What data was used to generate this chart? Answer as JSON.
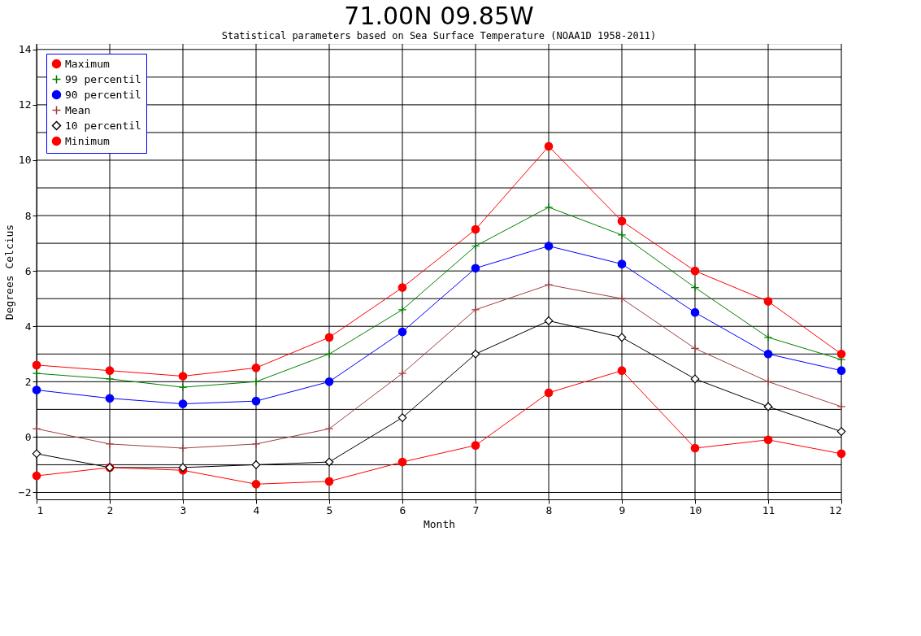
{
  "chart_data": {
    "type": "line",
    "title": "71.00N 09.85W",
    "subtitle": "Statistical parameters based on Sea Surface Temperature (NOAA1D 1958-2011)",
    "xlabel": "Month",
    "ylabel": "Degrees Celcius",
    "x": [
      1,
      2,
      3,
      4,
      5,
      6,
      7,
      8,
      9,
      10,
      11,
      12
    ],
    "xlim": [
      1,
      12
    ],
    "xticks": [
      1,
      2,
      3,
      4,
      5,
      6,
      7,
      8,
      9,
      10,
      11,
      12
    ],
    "ylim": [
      -2.25,
      14.2
    ],
    "yticks": [
      -2,
      {
        "value": -1,
        "label": null
      },
      0,
      {
        "value": 1,
        "label": null
      },
      2,
      {
        "value": 3,
        "label": null
      },
      4,
      {
        "value": 5,
        "label": null
      },
      6,
      {
        "value": 7,
        "label": null
      },
      8,
      {
        "value": 9,
        "label": null
      },
      10,
      {
        "value": 11,
        "label": null
      },
      12,
      {
        "value": 13,
        "label": null
      },
      14
    ],
    "grid": true,
    "legend": "top left",
    "line_style": "solid",
    "series": [
      {
        "name": "Maximum",
        "color": "#ff0000",
        "marker": "circle",
        "values": [
          2.6,
          2.4,
          2.2,
          2.5,
          3.6,
          5.4,
          7.5,
          10.5,
          7.8,
          6.0,
          4.9,
          3.0
        ]
      },
      {
        "name": "99 percentil",
        "color": "#008000",
        "marker": "cross",
        "values": [
          2.3,
          2.1,
          1.8,
          2.0,
          3.0,
          4.6,
          6.9,
          8.3,
          7.3,
          5.4,
          3.6,
          2.8
        ]
      },
      {
        "name": "90 percentil",
        "color": "#0000ff",
        "marker": "circle",
        "values": [
          1.7,
          1.4,
          1.2,
          1.3,
          2.0,
          3.8,
          6.1,
          6.9,
          6.25,
          4.5,
          3.0,
          2.4
        ]
      },
      {
        "name": "Mean",
        "color": "#a04040",
        "marker": "cross",
        "values": [
          0.3,
          -0.25,
          -0.4,
          -0.25,
          0.3,
          2.3,
          4.6,
          5.5,
          5.0,
          3.2,
          2.0,
          1.1
        ]
      },
      {
        "name": "10 percentil",
        "color": "#000000",
        "marker": "diamond",
        "values": [
          -0.6,
          -1.1,
          -1.1,
          -1.0,
          -0.9,
          0.7,
          3.0,
          4.2,
          3.6,
          2.1,
          1.1,
          0.2
        ]
      },
      {
        "name": "Minimum",
        "color": "#ff0000",
        "marker": "circle",
        "values": [
          -1.4,
          -1.1,
          -1.2,
          -1.7,
          -1.6,
          -0.9,
          -0.3,
          1.6,
          2.4,
          -0.4,
          -0.1,
          -0.6
        ]
      }
    ]
  }
}
